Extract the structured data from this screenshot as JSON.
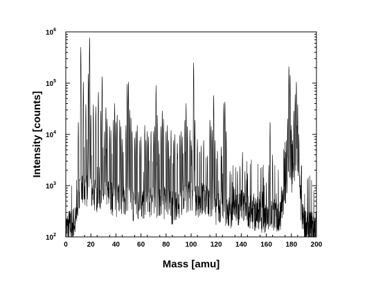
{
  "chart_data": {
    "type": "line",
    "title": "",
    "xlabel": "Mass [amu]",
    "ylabel": "Intensity [counts]",
    "xlim": [
      0,
      200
    ],
    "ylim": [
      100,
      1000000
    ],
    "yscale": "log",
    "grid": false,
    "x_ticks": [
      0,
      20,
      40,
      60,
      80,
      100,
      120,
      140,
      160,
      180,
      200
    ],
    "x_tick_labels": [
      "0",
      "20",
      "40",
      "60",
      "80",
      "100",
      "120",
      "140",
      "160",
      "180",
      "200"
    ],
    "y_ticks": [
      {
        "value": 100,
        "base": "10",
        "exp": "2"
      },
      {
        "value": 1000,
        "base": "10",
        "exp": "3"
      },
      {
        "value": 10000,
        "base": "10",
        "exp": "4"
      },
      {
        "value": 100000,
        "base": "10",
        "exp": "5"
      },
      {
        "value": 1000000,
        "base": "10",
        "exp": "6"
      }
    ],
    "series": [
      {
        "color": "#000000",
        "baseline": [
          [
            0,
            150
          ],
          [
            5,
            170
          ],
          [
            8,
            200
          ],
          [
            10,
            600
          ],
          [
            14,
            900
          ],
          [
            18,
            800
          ],
          [
            22,
            650
          ],
          [
            28,
            700
          ],
          [
            35,
            650
          ],
          [
            40,
            500
          ],
          [
            45,
            600
          ],
          [
            50,
            500
          ],
          [
            55,
            420
          ],
          [
            60,
            400
          ],
          [
            65,
            480
          ],
          [
            70,
            550
          ],
          [
            75,
            450
          ],
          [
            80,
            500
          ],
          [
            85,
            380
          ],
          [
            90,
            500
          ],
          [
            95,
            650
          ],
          [
            100,
            700
          ],
          [
            105,
            500
          ],
          [
            110,
            600
          ],
          [
            115,
            420
          ],
          [
            120,
            380
          ],
          [
            125,
            420
          ],
          [
            130,
            300
          ],
          [
            135,
            320
          ],
          [
            140,
            420
          ],
          [
            145,
            350
          ],
          [
            150,
            300
          ],
          [
            155,
            270
          ],
          [
            160,
            260
          ],
          [
            165,
            300
          ],
          [
            170,
            230
          ],
          [
            173,
            450
          ],
          [
            176,
            1200
          ],
          [
            178,
            3000
          ],
          [
            180,
            1100
          ],
          [
            182,
            1800
          ],
          [
            184,
            4000
          ],
          [
            186,
            1500
          ],
          [
            188,
            300
          ],
          [
            190,
            180
          ],
          [
            195,
            160
          ],
          [
            200,
            160
          ]
        ],
        "peaks": [
          [
            10,
            18000
          ],
          [
            12,
            500000
          ],
          [
            14,
            110000
          ],
          [
            16,
            40000
          ],
          [
            18,
            150000
          ],
          [
            19,
            800000
          ],
          [
            20,
            25000
          ],
          [
            22,
            40000
          ],
          [
            24,
            35000
          ],
          [
            26,
            70000
          ],
          [
            28,
            30000
          ],
          [
            29,
            140000
          ],
          [
            31,
            12000
          ],
          [
            32,
            35000
          ],
          [
            33,
            20000
          ],
          [
            35,
            15000
          ],
          [
            36,
            12000
          ],
          [
            38,
            20000
          ],
          [
            39,
            40000
          ],
          [
            40,
            18000
          ],
          [
            41,
            25000
          ],
          [
            43,
            20000
          ],
          [
            44,
            15000
          ],
          [
            45,
            8000
          ],
          [
            48,
            15000
          ],
          [
            49,
            100000
          ],
          [
            50,
            110000
          ],
          [
            51,
            30000
          ],
          [
            52,
            22000
          ],
          [
            53,
            12000
          ],
          [
            55,
            9000
          ],
          [
            56,
            12000
          ],
          [
            57,
            15000
          ],
          [
            59,
            8000
          ],
          [
            60,
            9000
          ],
          [
            63,
            15000
          ],
          [
            64,
            8000
          ],
          [
            65,
            12000
          ],
          [
            66,
            9000
          ],
          [
            68,
            12000
          ],
          [
            70,
            12000
          ],
          [
            71,
            15000
          ],
          [
            72,
            90000
          ],
          [
            73,
            25000
          ],
          [
            74,
            8000
          ],
          [
            76,
            15000
          ],
          [
            77,
            30000
          ],
          [
            78,
            20000
          ],
          [
            80,
            12000
          ],
          [
            81,
            15000
          ],
          [
            82,
            8000
          ],
          [
            84,
            12000
          ],
          [
            86,
            8000
          ],
          [
            87,
            10000
          ],
          [
            89,
            7000
          ],
          [
            91,
            10000
          ],
          [
            92,
            12000
          ],
          [
            93,
            9000
          ],
          [
            95,
            20000
          ],
          [
            96,
            40000
          ],
          [
            97,
            15000
          ],
          [
            99,
            12000
          ],
          [
            100,
            8000
          ],
          [
            102,
            250000
          ],
          [
            103,
            20000
          ],
          [
            105,
            8000
          ],
          [
            108,
            6000
          ],
          [
            110,
            8000
          ],
          [
            113,
            4000
          ],
          [
            115,
            20000
          ],
          [
            116,
            15000
          ],
          [
            117,
            12000
          ],
          [
            118,
            60000
          ],
          [
            119,
            8000
          ],
          [
            121,
            5000
          ],
          [
            124,
            6000
          ],
          [
            126,
            40000
          ],
          [
            127,
            45000
          ],
          [
            128,
            12000
          ],
          [
            131,
            2000
          ],
          [
            134,
            1000
          ],
          [
            137,
            2000
          ],
          [
            139,
            2500
          ],
          [
            141,
            4500
          ],
          [
            143,
            2000
          ],
          [
            145,
            1800
          ],
          [
            148,
            900
          ],
          [
            150,
            700
          ],
          [
            153,
            600
          ],
          [
            157,
            800
          ],
          [
            160,
            1200
          ],
          [
            162,
            2500
          ],
          [
            163,
            18000
          ],
          [
            165,
            4000
          ],
          [
            168,
            700
          ],
          [
            172,
            1000
          ],
          [
            174,
            2500
          ],
          [
            176,
            8000
          ],
          [
            177,
            20000
          ],
          [
            178,
            220000
          ],
          [
            179,
            150000
          ],
          [
            180,
            15000
          ],
          [
            181,
            8000
          ],
          [
            182,
            30000
          ],
          [
            183,
            60000
          ],
          [
            184,
            110000
          ],
          [
            185,
            40000
          ],
          [
            186,
            10000
          ],
          [
            188,
            1500
          ],
          [
            190,
            400
          ]
        ]
      }
    ]
  }
}
